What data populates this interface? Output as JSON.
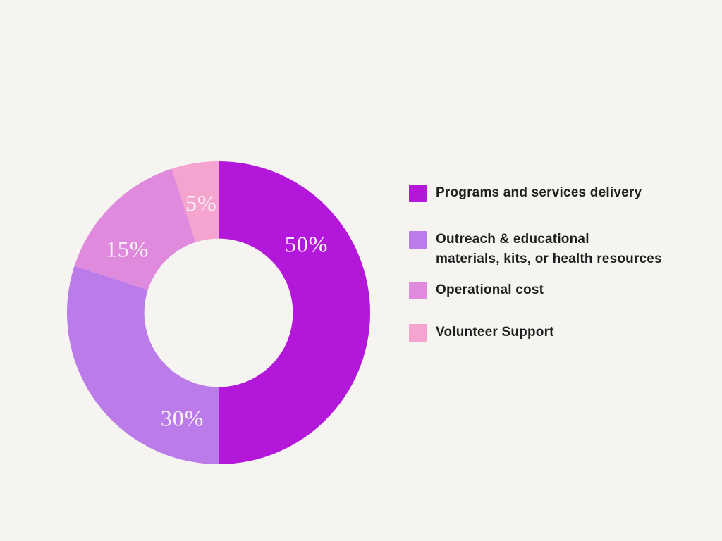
{
  "canvas": {
    "background_color": "#f5f4f1"
  },
  "chart_data": {
    "type": "pie",
    "subtype": "donut",
    "title": "",
    "categories": [
      "Programs and services delivery",
      "Outreach & educational materials, kits, or health resources",
      "Operational cost",
      "Volunteer Support"
    ],
    "values": [
      50,
      30,
      15,
      5
    ],
    "unit": "%",
    "slice_labels": [
      "50%",
      "30%",
      "15%",
      "5%"
    ],
    "colors": [
      "#b318da",
      "#bb7ce9",
      "#e08ade",
      "#f5a3cf"
    ],
    "label_color": "#f7f1f4",
    "start_angle_deg": 0,
    "direction": "clockwise",
    "inner_radius_ratio": 0.49,
    "label_radius_ratio": 0.735,
    "label_angles_deg": [
      52,
      199,
      305,
      351
    ],
    "legend_position": "right",
    "grid": false
  },
  "legend": {
    "items": [
      {
        "label": "Programs and services delivery",
        "color": "#b318da"
      },
      {
        "label": "Outreach & educational\nmaterials, kits, or health resources",
        "color": "#bb7ce9"
      },
      {
        "label": "Operational cost",
        "color": "#e08ade"
      },
      {
        "label": "Volunteer Support",
        "color": "#f5a3cf"
      }
    ]
  }
}
